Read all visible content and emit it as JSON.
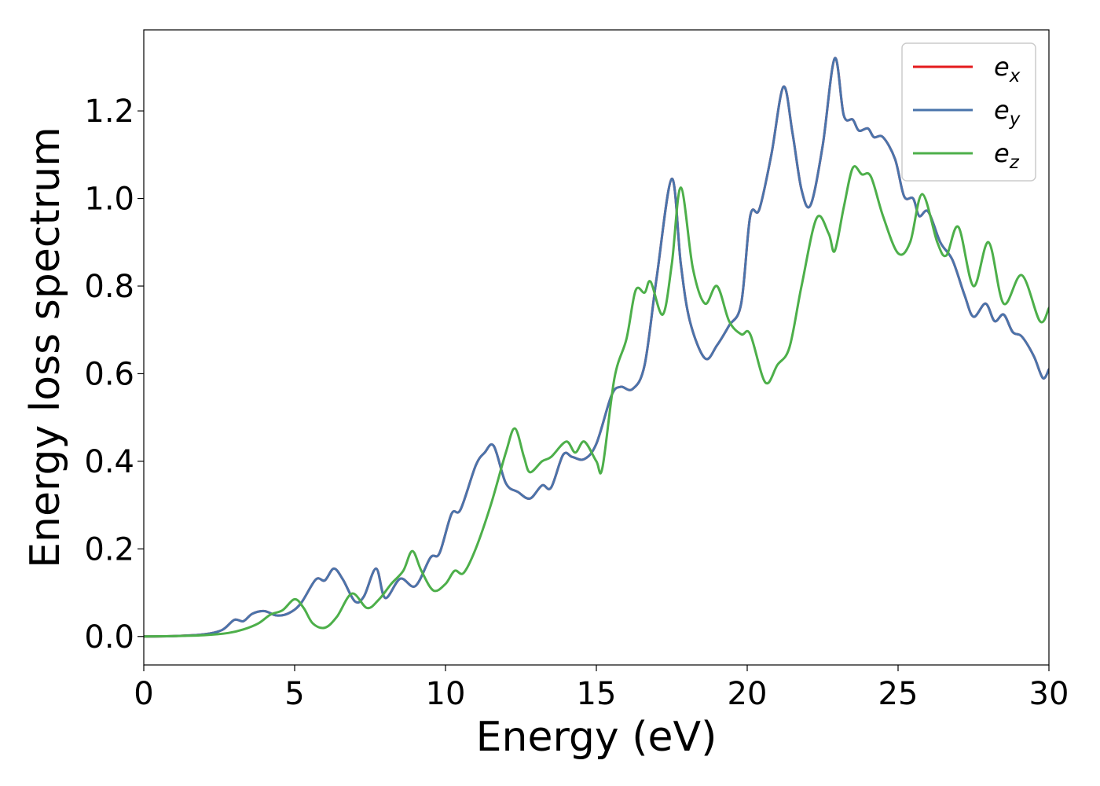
{
  "chart_data": {
    "type": "line",
    "title": "",
    "xlabel": "Energy (eV)",
    "ylabel": "Energy loss spectrum",
    "xlim": [
      0,
      30
    ],
    "ylim": [
      -0.065,
      1.385
    ],
    "x_ticks": [
      0,
      5,
      10,
      15,
      20,
      25,
      30
    ],
    "y_ticks": [
      0.0,
      0.2,
      0.4,
      0.6,
      0.8,
      1.0,
      1.2
    ],
    "x_tick_labels": [
      "0",
      "5",
      "10",
      "15",
      "20",
      "25",
      "30"
    ],
    "y_tick_labels": [
      "0.0",
      "0.2",
      "0.4",
      "0.6",
      "0.8",
      "1.0",
      "1.2"
    ],
    "grid": false,
    "legend_position": "top-right",
    "series": [
      {
        "name": "e_x",
        "label_base": "e",
        "label_sub": "x",
        "color": "#e41a1c",
        "points": [
          [
            0,
            0
          ],
          [
            1,
            0.001
          ],
          [
            2,
            0.005
          ],
          [
            2.6,
            0.015
          ],
          [
            3,
            0.038
          ],
          [
            3.3,
            0.035
          ],
          [
            3.6,
            0.052
          ],
          [
            4,
            0.058
          ],
          [
            4.4,
            0.048
          ],
          [
            4.8,
            0.053
          ],
          [
            5.2,
            0.075
          ],
          [
            5.7,
            0.13
          ],
          [
            6,
            0.128
          ],
          [
            6.3,
            0.155
          ],
          [
            6.6,
            0.13
          ],
          [
            7,
            0.08
          ],
          [
            7.3,
            0.092
          ],
          [
            7.7,
            0.155
          ],
          [
            8,
            0.088
          ],
          [
            8.5,
            0.132
          ],
          [
            9,
            0.115
          ],
          [
            9.5,
            0.18
          ],
          [
            9.8,
            0.19
          ],
          [
            10.2,
            0.28
          ],
          [
            10.5,
            0.29
          ],
          [
            11,
            0.39
          ],
          [
            11.3,
            0.42
          ],
          [
            11.6,
            0.435
          ],
          [
            12,
            0.35
          ],
          [
            12.4,
            0.33
          ],
          [
            12.8,
            0.315
          ],
          [
            13.2,
            0.345
          ],
          [
            13.5,
            0.34
          ],
          [
            13.9,
            0.415
          ],
          [
            14.2,
            0.41
          ],
          [
            14.6,
            0.405
          ],
          [
            15,
            0.44
          ],
          [
            15.5,
            0.55
          ],
          [
            15.8,
            0.57
          ],
          [
            16.2,
            0.565
          ],
          [
            16.6,
            0.62
          ],
          [
            17,
            0.82
          ],
          [
            17.5,
            1.045
          ],
          [
            17.8,
            0.85
          ],
          [
            18.1,
            0.72
          ],
          [
            18.6,
            0.635
          ],
          [
            19,
            0.665
          ],
          [
            19.4,
            0.71
          ],
          [
            19.8,
            0.76
          ],
          [
            20.1,
            0.96
          ],
          [
            20.4,
            0.975
          ],
          [
            20.8,
            1.1
          ],
          [
            21.2,
            1.255
          ],
          [
            21.5,
            1.15
          ],
          [
            21.8,
            1.02
          ],
          [
            22.1,
            0.985
          ],
          [
            22.5,
            1.12
          ],
          [
            22.9,
            1.32
          ],
          [
            23.2,
            1.19
          ],
          [
            23.5,
            1.18
          ],
          [
            23.7,
            1.155
          ],
          [
            24,
            1.16
          ],
          [
            24.2,
            1.14
          ],
          [
            24.5,
            1.14
          ],
          [
            24.9,
            1.09
          ],
          [
            25.2,
            1.005
          ],
          [
            25.5,
            1.0
          ],
          [
            25.7,
            0.96
          ],
          [
            26,
            0.97
          ],
          [
            26.4,
            0.9
          ],
          [
            26.8,
            0.86
          ],
          [
            27.2,
            0.78
          ],
          [
            27.5,
            0.73
          ],
          [
            27.9,
            0.76
          ],
          [
            28.2,
            0.72
          ],
          [
            28.5,
            0.735
          ],
          [
            28.8,
            0.695
          ],
          [
            29.1,
            0.685
          ],
          [
            29.5,
            0.64
          ],
          [
            29.8,
            0.59
          ],
          [
            30,
            0.61
          ]
        ]
      },
      {
        "name": "e_y",
        "label_base": "e",
        "label_sub": "y",
        "color": "#4a74ab",
        "points": [
          [
            0,
            0
          ],
          [
            1,
            0.001
          ],
          [
            2,
            0.005
          ],
          [
            2.6,
            0.015
          ],
          [
            3,
            0.038
          ],
          [
            3.3,
            0.035
          ],
          [
            3.6,
            0.052
          ],
          [
            4,
            0.058
          ],
          [
            4.4,
            0.048
          ],
          [
            4.8,
            0.053
          ],
          [
            5.2,
            0.075
          ],
          [
            5.7,
            0.13
          ],
          [
            6,
            0.128
          ],
          [
            6.3,
            0.155
          ],
          [
            6.6,
            0.13
          ],
          [
            7,
            0.08
          ],
          [
            7.3,
            0.092
          ],
          [
            7.7,
            0.155
          ],
          [
            8,
            0.088
          ],
          [
            8.5,
            0.132
          ],
          [
            9,
            0.115
          ],
          [
            9.5,
            0.18
          ],
          [
            9.8,
            0.19
          ],
          [
            10.2,
            0.28
          ],
          [
            10.5,
            0.29
          ],
          [
            11,
            0.39
          ],
          [
            11.3,
            0.42
          ],
          [
            11.6,
            0.435
          ],
          [
            12,
            0.35
          ],
          [
            12.4,
            0.33
          ],
          [
            12.8,
            0.315
          ],
          [
            13.2,
            0.345
          ],
          [
            13.5,
            0.34
          ],
          [
            13.9,
            0.415
          ],
          [
            14.2,
            0.41
          ],
          [
            14.6,
            0.405
          ],
          [
            15,
            0.44
          ],
          [
            15.5,
            0.55
          ],
          [
            15.8,
            0.57
          ],
          [
            16.2,
            0.565
          ],
          [
            16.6,
            0.62
          ],
          [
            17,
            0.82
          ],
          [
            17.5,
            1.045
          ],
          [
            17.8,
            0.85
          ],
          [
            18.1,
            0.72
          ],
          [
            18.6,
            0.635
          ],
          [
            19,
            0.665
          ],
          [
            19.4,
            0.71
          ],
          [
            19.8,
            0.76
          ],
          [
            20.1,
            0.96
          ],
          [
            20.4,
            0.975
          ],
          [
            20.8,
            1.1
          ],
          [
            21.2,
            1.255
          ],
          [
            21.5,
            1.15
          ],
          [
            21.8,
            1.02
          ],
          [
            22.1,
            0.985
          ],
          [
            22.5,
            1.12
          ],
          [
            22.9,
            1.32
          ],
          [
            23.2,
            1.19
          ],
          [
            23.5,
            1.18
          ],
          [
            23.7,
            1.155
          ],
          [
            24,
            1.16
          ],
          [
            24.2,
            1.14
          ],
          [
            24.5,
            1.14
          ],
          [
            24.9,
            1.09
          ],
          [
            25.2,
            1.005
          ],
          [
            25.5,
            1.0
          ],
          [
            25.7,
            0.96
          ],
          [
            26,
            0.97
          ],
          [
            26.4,
            0.9
          ],
          [
            26.8,
            0.86
          ],
          [
            27.2,
            0.78
          ],
          [
            27.5,
            0.73
          ],
          [
            27.9,
            0.76
          ],
          [
            28.2,
            0.72
          ],
          [
            28.5,
            0.735
          ],
          [
            28.8,
            0.695
          ],
          [
            29.1,
            0.685
          ],
          [
            29.5,
            0.64
          ],
          [
            29.8,
            0.59
          ],
          [
            30,
            0.61
          ]
        ]
      },
      {
        "name": "e_z",
        "label_base": "e",
        "label_sub": "z",
        "color": "#4daf4a",
        "points": [
          [
            0,
            0
          ],
          [
            1,
            0.001
          ],
          [
            2,
            0.003
          ],
          [
            2.8,
            0.008
          ],
          [
            3.3,
            0.016
          ],
          [
            3.8,
            0.03
          ],
          [
            4.2,
            0.05
          ],
          [
            4.6,
            0.06
          ],
          [
            5,
            0.085
          ],
          [
            5.3,
            0.065
          ],
          [
            5.6,
            0.03
          ],
          [
            6,
            0.02
          ],
          [
            6.4,
            0.045
          ],
          [
            6.9,
            0.098
          ],
          [
            7.4,
            0.065
          ],
          [
            7.8,
            0.085
          ],
          [
            8.2,
            0.12
          ],
          [
            8.6,
            0.15
          ],
          [
            8.9,
            0.195
          ],
          [
            9.2,
            0.15
          ],
          [
            9.6,
            0.105
          ],
          [
            10,
            0.12
          ],
          [
            10.3,
            0.15
          ],
          [
            10.6,
            0.145
          ],
          [
            11,
            0.2
          ],
          [
            11.5,
            0.3
          ],
          [
            12,
            0.42
          ],
          [
            12.3,
            0.475
          ],
          [
            12.6,
            0.41
          ],
          [
            12.8,
            0.375
          ],
          [
            13.2,
            0.4
          ],
          [
            13.5,
            0.41
          ],
          [
            14,
            0.445
          ],
          [
            14.3,
            0.42
          ],
          [
            14.6,
            0.445
          ],
          [
            15,
            0.4
          ],
          [
            15.2,
            0.385
          ],
          [
            15.6,
            0.59
          ],
          [
            16,
            0.68
          ],
          [
            16.3,
            0.79
          ],
          [
            16.6,
            0.785
          ],
          [
            16.8,
            0.81
          ],
          [
            17.2,
            0.735
          ],
          [
            17.5,
            0.85
          ],
          [
            17.8,
            1.025
          ],
          [
            18.2,
            0.84
          ],
          [
            18.6,
            0.76
          ],
          [
            19,
            0.8
          ],
          [
            19.4,
            0.72
          ],
          [
            19.8,
            0.69
          ],
          [
            20.1,
            0.69
          ],
          [
            20.6,
            0.58
          ],
          [
            21,
            0.62
          ],
          [
            21.4,
            0.66
          ],
          [
            21.8,
            0.8
          ],
          [
            22.3,
            0.955
          ],
          [
            22.7,
            0.92
          ],
          [
            22.9,
            0.88
          ],
          [
            23.2,
            0.98
          ],
          [
            23.5,
            1.07
          ],
          [
            23.8,
            1.055
          ],
          [
            24.1,
            1.05
          ],
          [
            24.5,
            0.96
          ],
          [
            25,
            0.875
          ],
          [
            25.4,
            0.9
          ],
          [
            25.8,
            1.01
          ],
          [
            26.3,
            0.9
          ],
          [
            26.6,
            0.87
          ],
          [
            27,
            0.935
          ],
          [
            27.5,
            0.8
          ],
          [
            28,
            0.9
          ],
          [
            28.5,
            0.76
          ],
          [
            29.1,
            0.825
          ],
          [
            29.7,
            0.72
          ],
          [
            30,
            0.75
          ]
        ]
      }
    ]
  }
}
